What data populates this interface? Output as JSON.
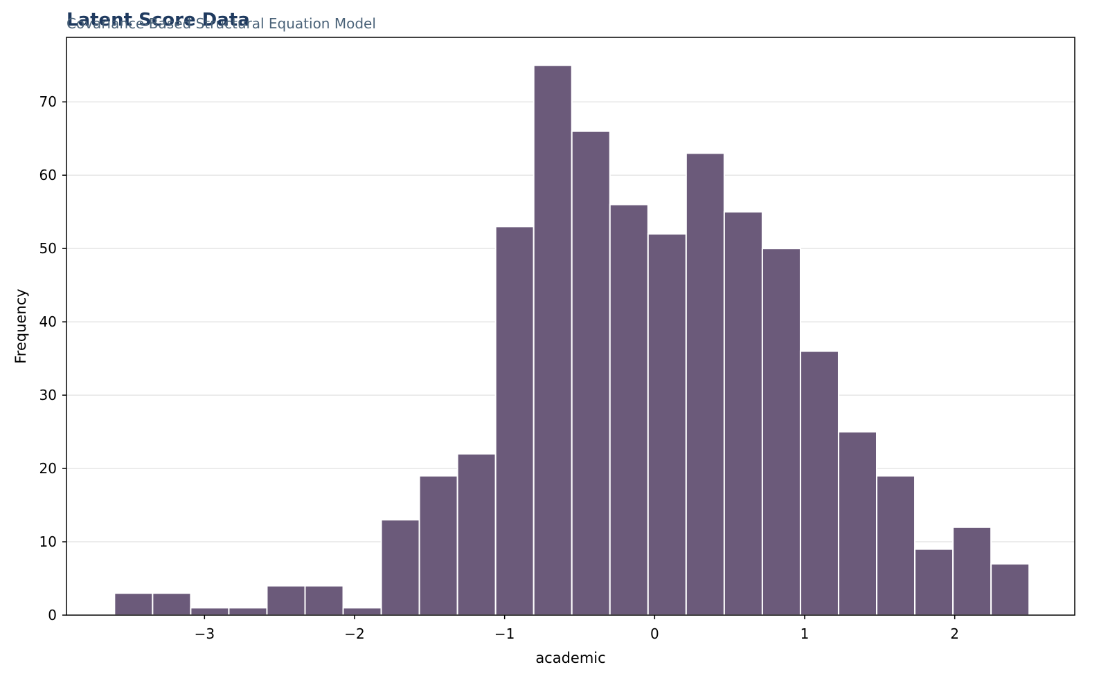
{
  "chart_data": {
    "type": "bar",
    "title": "Latent Score Data",
    "subtitle": "Covariance-Based Structural Equation Model",
    "xlabel": "academic",
    "ylabel": "Frequency",
    "bin_start": -3.6,
    "bin_width": 0.254,
    "values": [
      3,
      3,
      1,
      1,
      4,
      4,
      1,
      13,
      19,
      22,
      53,
      75,
      66,
      56,
      52,
      63,
      55,
      50,
      36,
      25,
      19,
      9,
      12,
      7
    ],
    "xlim": [
      -3.92,
      2.8
    ],
    "ylim": [
      0,
      78.8
    ],
    "xticks": [
      -3,
      -2,
      -1,
      0,
      1,
      2
    ],
    "xtick_labels": [
      "−3",
      "−2",
      "−1",
      "0",
      "1",
      "2"
    ],
    "yticks": [
      0,
      10,
      20,
      30,
      40,
      50,
      60,
      70
    ],
    "ytick_labels": [
      "0",
      "10",
      "20",
      "30",
      "40",
      "50",
      "60",
      "70"
    ],
    "grid": "horizontal",
    "bar_color": "#6b5a7a",
    "title_color": "#1f3a5f",
    "subtitle_color": "#4a6278"
  }
}
